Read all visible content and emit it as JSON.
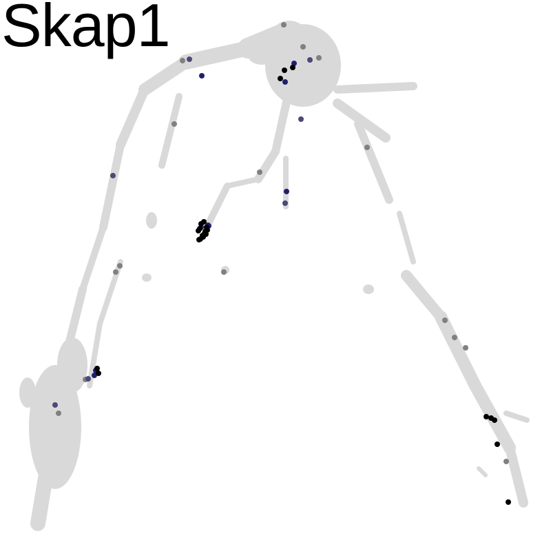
{
  "chart_data": {
    "type": "scatter",
    "title": "Skap1",
    "xlabel": "",
    "ylabel": "",
    "grid": false,
    "legend": "none",
    "colors": {
      "background_cells": "#d9d9d9",
      "low": "#808080",
      "mid": "#1f1f6e",
      "high": "#000000"
    },
    "x": [
      265,
      275,
      293,
      412,
      440,
      463,
      450,
      425,
      427,
      413,
      407,
      414,
      437,
      253,
      164,
      377,
      416,
      414,
      292,
      296,
      300,
      288,
      302,
      297,
      294,
      291,
      298,
      290,
      303,
      295,
      299,
      292,
      301,
      289,
      174,
      168,
      141,
      139,
      143,
      137,
      128,
      124,
      80,
      85,
      706,
      713,
      718,
      722,
      735,
      738,
      646,
      660,
      676,
      533,
      325
    ],
    "y": [
      88,
      86,
      110,
      36,
      68,
      84,
      87,
      98,
      92,
      102,
      114,
      119,
      173,
      180,
      255,
      250,
      278,
      295,
      325,
      322,
      330,
      335,
      327,
      339,
      342,
      347,
      336,
      332,
      328,
      344,
      340,
      330,
      334,
      348,
      386,
      395,
      535,
      538,
      542,
      545,
      550,
      551,
      588,
      600,
      605,
      607,
      610,
      645,
      670,
      729,
      465,
      490,
      505,
      214,
      395
    ],
    "level": [
      0.5,
      0.7,
      0.9,
      0.5,
      0.5,
      0.5,
      0.6,
      1.0,
      0.9,
      1.0,
      1.0,
      0.9,
      0.7,
      0.5,
      0.6,
      0.5,
      0.9,
      0.7,
      1.0,
      1.0,
      1.0,
      1.0,
      0.9,
      1.0,
      1.0,
      1.0,
      1.0,
      1.0,
      0.9,
      1.0,
      1.0,
      0.9,
      1.0,
      1.0,
      0.4,
      0.5,
      1.0,
      0.9,
      1.0,
      0.9,
      0.7,
      0.5,
      0.7,
      0.4,
      1.0,
      1.0,
      1.0,
      1.0,
      0.5,
      1.0,
      0.5,
      0.4,
      0.4,
      0.4,
      0.4
    ]
  }
}
